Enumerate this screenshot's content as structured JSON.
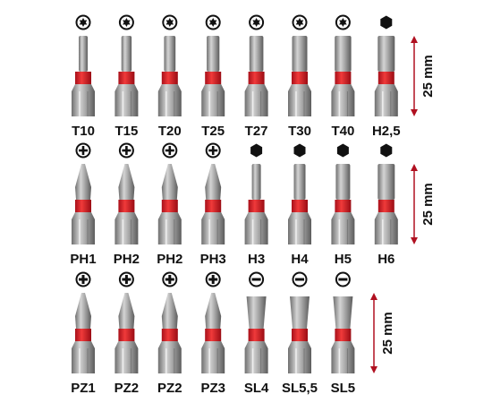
{
  "rows": [
    {
      "bits": [
        {
          "label": "T10",
          "icon": "torx"
        },
        {
          "label": "T15",
          "icon": "torx"
        },
        {
          "label": "T20",
          "icon": "torx"
        },
        {
          "label": "T25",
          "icon": "torx"
        },
        {
          "label": "T27",
          "icon": "torx"
        },
        {
          "label": "T30",
          "icon": "torx"
        },
        {
          "label": "T40",
          "icon": "torx"
        },
        {
          "label": "H2,5",
          "icon": "hex"
        }
      ],
      "dimension": "25 mm"
    },
    {
      "bits": [
        {
          "label": "PH1",
          "icon": "phillips"
        },
        {
          "label": "PH2",
          "icon": "phillips"
        },
        {
          "label": "PH2",
          "icon": "phillips"
        },
        {
          "label": "PH3",
          "icon": "phillips"
        },
        {
          "label": "H3",
          "icon": "hex"
        },
        {
          "label": "H4",
          "icon": "hex"
        },
        {
          "label": "H5",
          "icon": "hex"
        },
        {
          "label": "H6",
          "icon": "hex"
        }
      ],
      "dimension": "25 mm"
    },
    {
      "bits": [
        {
          "label": "PZ1",
          "icon": "pozidriv"
        },
        {
          "label": "PZ2",
          "icon": "pozidriv"
        },
        {
          "label": "PZ2",
          "icon": "pozidriv"
        },
        {
          "label": "PZ3",
          "icon": "pozidriv"
        },
        {
          "label": "SL4",
          "icon": "slot"
        },
        {
          "label": "SL5,5",
          "icon": "slot"
        },
        {
          "label": "SL5",
          "icon": "slot"
        }
      ],
      "dimension": "25 mm"
    }
  ]
}
